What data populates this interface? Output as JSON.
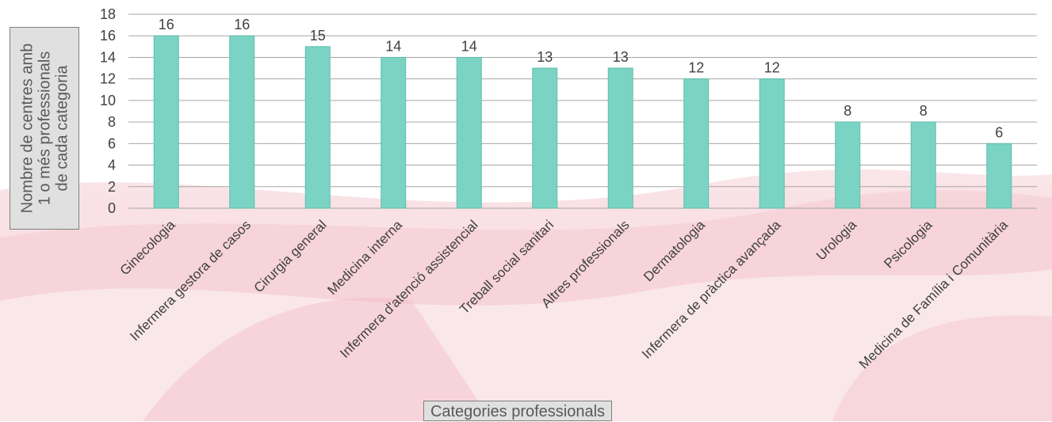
{
  "colors": {
    "bar": "#7ad3c3",
    "bar_stroke": "#5fbfad",
    "grid": "#a6a6a6",
    "text": "#404040",
    "accent_bg": "#f3c6ce"
  },
  "chart_data": {
    "type": "bar",
    "title": "",
    "ylabel_lines": [
      "Nombre de centres amb",
      "1 o més professionals",
      "de cada categoria"
    ],
    "xlabel": "Categories professionals",
    "categories": [
      "Ginecologia",
      "Infermera gestora de casos",
      "Cirurgia general",
      "Medicina interna",
      "Infermera d'atenció assistencial",
      "Treball social sanitari",
      "Altres professionals",
      "Dermatologia",
      "Infermera de pràctica avançada",
      "Urologia",
      "Psicologia",
      "Medicina de Família i Comunitària"
    ],
    "values": [
      16,
      16,
      15,
      14,
      14,
      13,
      13,
      12,
      12,
      8,
      8,
      6
    ],
    "yticks": [
      0,
      2,
      4,
      6,
      8,
      10,
      12,
      14,
      16,
      18
    ],
    "ylim": [
      0,
      18
    ],
    "grid": true,
    "data_labels": true,
    "legend": "none"
  }
}
